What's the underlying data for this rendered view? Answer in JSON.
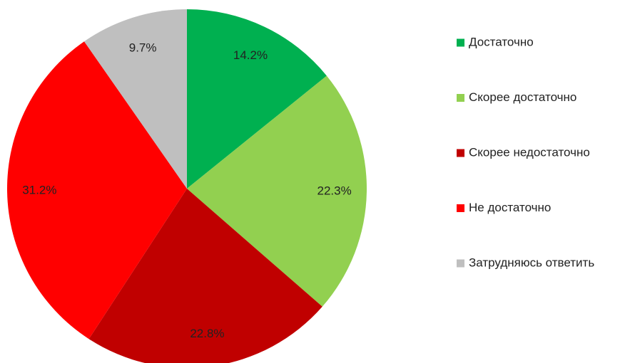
{
  "chart_data": {
    "type": "pie",
    "categories": [
      "Достаточно",
      "Скорее достаточно",
      "Скорее недостаточно",
      "Не достаточно",
      "Затрудняюсь ответить"
    ],
    "values": [
      14.2,
      22.3,
      22.8,
      31.2,
      9.7
    ],
    "value_labels": [
      "14.2%",
      "22.3%",
      "22.8%",
      "31.2%",
      "9.7%"
    ],
    "colors": [
      "#00b050",
      "#92d050",
      "#c00000",
      "#ff0000",
      "#bfbfbf"
    ],
    "legend": "right"
  }
}
